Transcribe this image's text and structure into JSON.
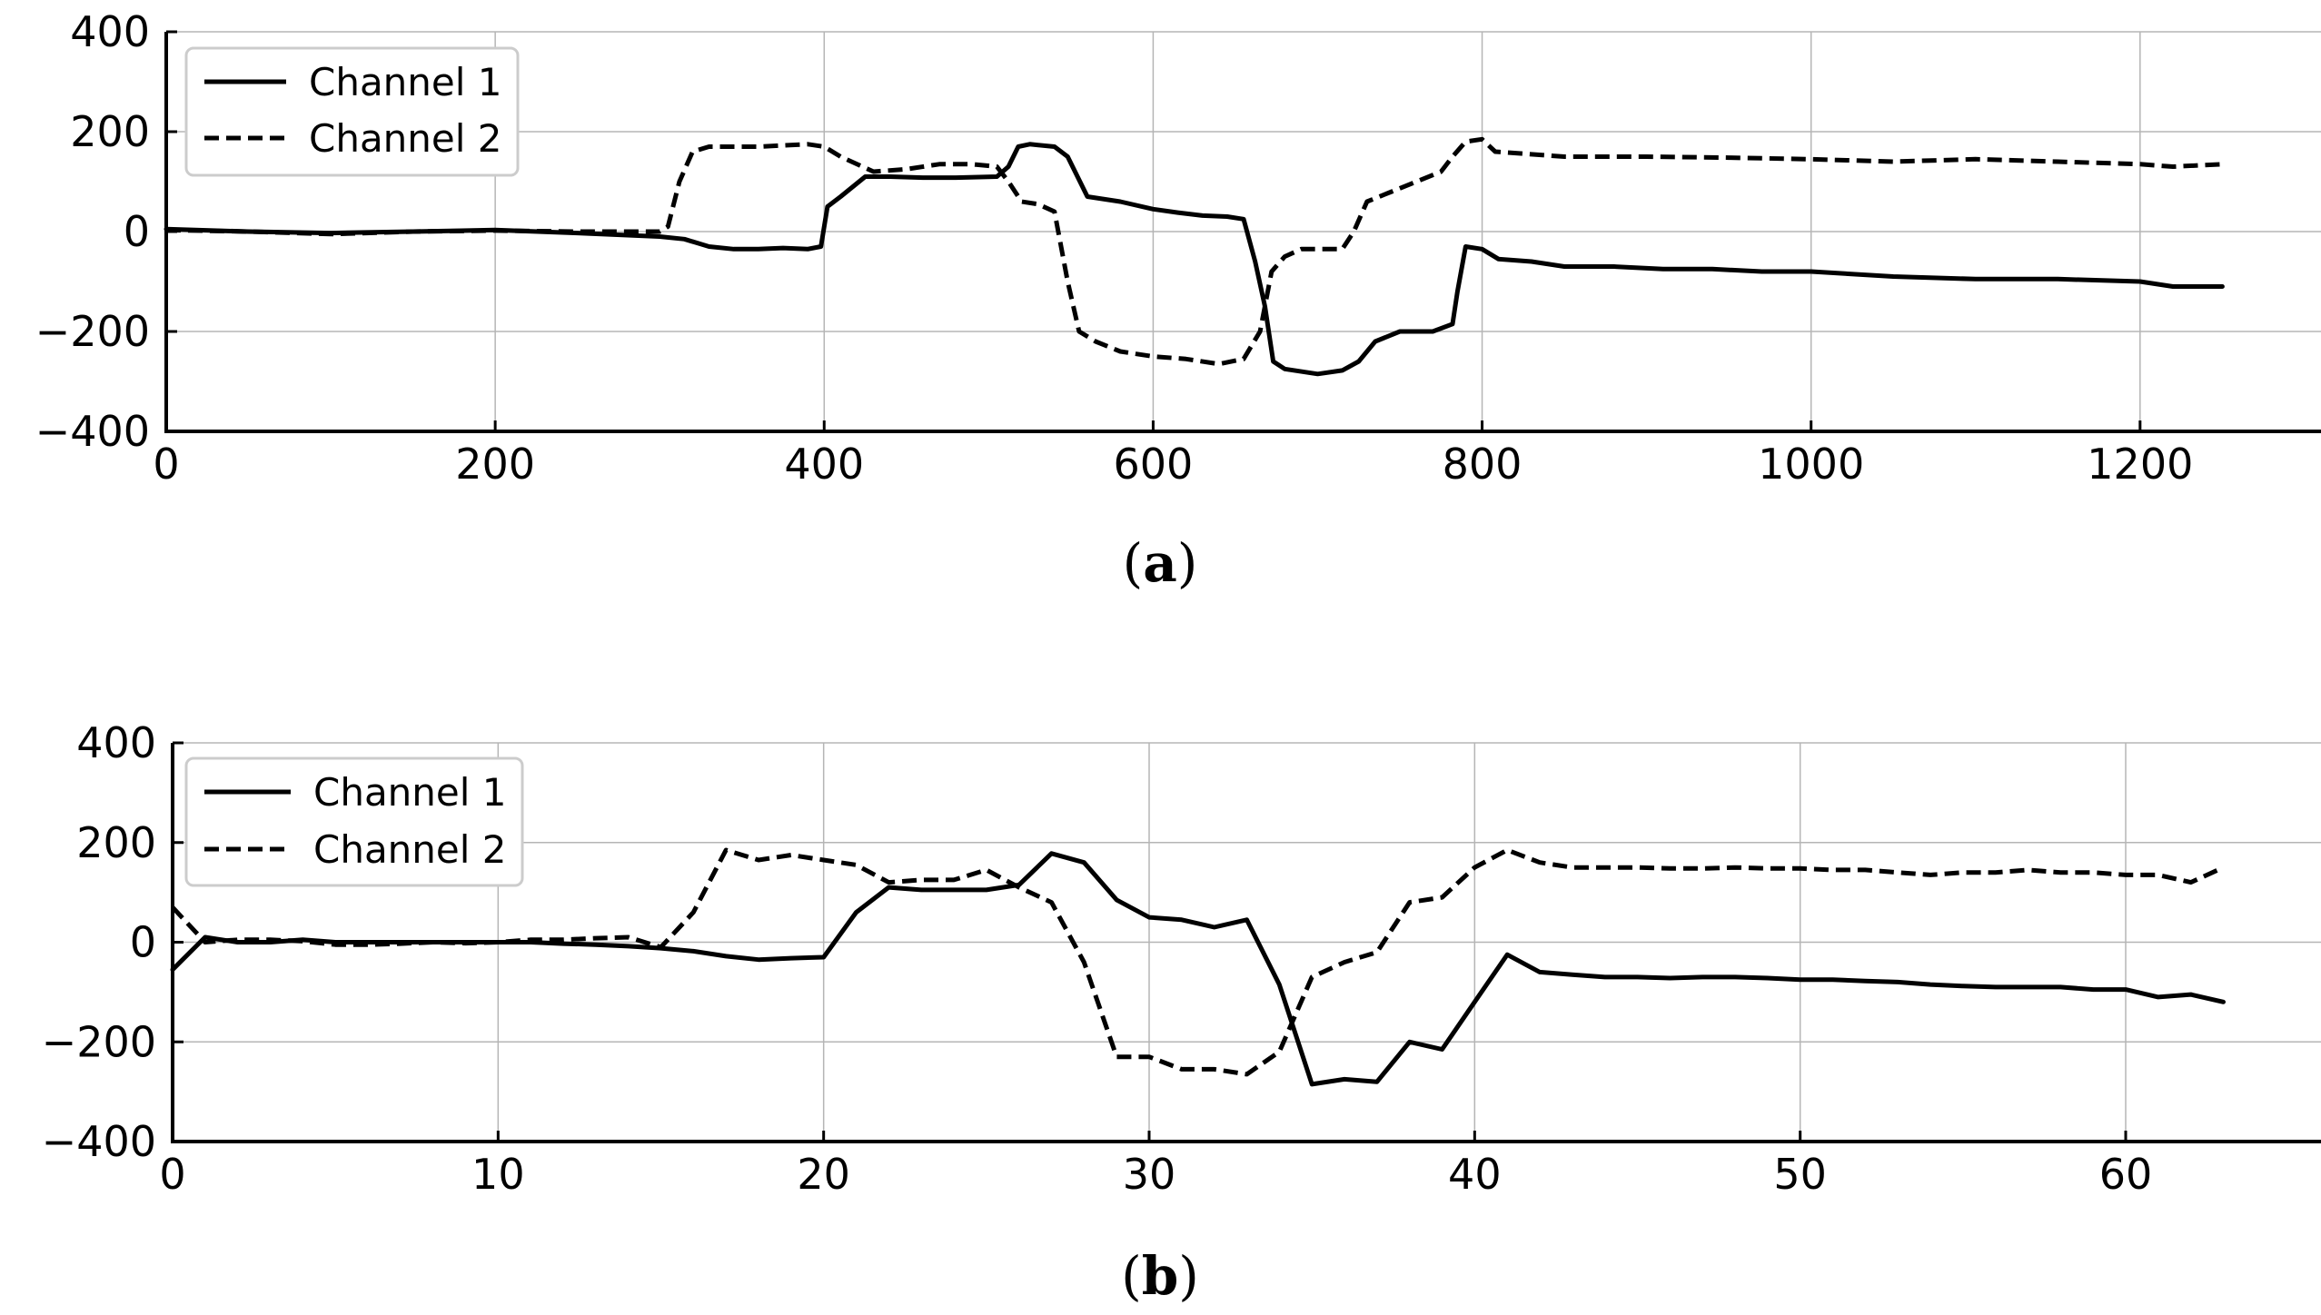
{
  "chart_data": [
    {
      "type": "line",
      "caption_letter": "a",
      "xlim": [
        0,
        1310
      ],
      "ylim": [
        -400,
        400
      ],
      "xticks": [
        0,
        200,
        400,
        600,
        800,
        1000,
        1200
      ],
      "yticks": [
        -400,
        -200,
        0,
        200,
        400
      ],
      "xtick_labels": [
        "0",
        "200",
        "400",
        "600",
        "800",
        "1000",
        "1200"
      ],
      "ytick_labels": [
        "−400",
        "−200",
        "0",
        "200",
        "400"
      ],
      "grid": true,
      "legend_position": "top-left",
      "series": [
        {
          "name": "Channel 1",
          "style": "solid",
          "color": "#000000",
          "x": [
            0,
            50,
            100,
            150,
            200,
            250,
            300,
            315,
            330,
            345,
            360,
            375,
            390,
            398,
            402,
            410,
            425,
            440,
            460,
            480,
            505,
            512,
            518,
            525,
            540,
            548,
            560,
            580,
            600,
            615,
            630,
            645,
            655,
            662,
            668,
            673,
            680,
            700,
            715,
            725,
            735,
            750,
            770,
            782,
            785,
            790,
            800,
            810,
            830,
            850,
            880,
            910,
            940,
            970,
            1000,
            1050,
            1100,
            1150,
            1200,
            1220,
            1250
          ],
          "y": [
            5,
            0,
            -3,
            0,
            3,
            -3,
            -10,
            -15,
            -30,
            -35,
            -35,
            -33,
            -35,
            -30,
            50,
            70,
            110,
            110,
            108,
            108,
            110,
            130,
            170,
            175,
            170,
            150,
            70,
            60,
            45,
            38,
            32,
            30,
            25,
            -60,
            -150,
            -260,
            -275,
            -285,
            -278,
            -260,
            -220,
            -200,
            -200,
            -185,
            -120,
            -30,
            -35,
            -55,
            -60,
            -70,
            -70,
            -75,
            -75,
            -80,
            -80,
            -90,
            -95,
            -95,
            -100,
            -110,
            -110
          ]
        },
        {
          "name": "Channel 2",
          "style": "dashed",
          "color": "#000000",
          "x": [
            0,
            50,
            100,
            150,
            200,
            250,
            300,
            305,
            312,
            320,
            330,
            360,
            390,
            400,
            410,
            430,
            450,
            470,
            490,
            505,
            512,
            520,
            530,
            540,
            548,
            555,
            565,
            580,
            600,
            620,
            640,
            655,
            665,
            672,
            680,
            690,
            715,
            722,
            730,
            745,
            760,
            775,
            782,
            790,
            800,
            808,
            850,
            900,
            950,
            1000,
            1050,
            1100,
            1150,
            1200,
            1220,
            1250
          ],
          "y": [
            3,
            0,
            -5,
            0,
            2,
            0,
            0,
            10,
            100,
            160,
            170,
            170,
            175,
            170,
            150,
            120,
            125,
            135,
            135,
            130,
            100,
            60,
            55,
            40,
            -100,
            -200,
            -220,
            -240,
            -250,
            -255,
            -265,
            -255,
            -200,
            -80,
            -50,
            -35,
            -35,
            0,
            60,
            80,
            100,
            120,
            150,
            180,
            185,
            160,
            150,
            150,
            148,
            145,
            140,
            145,
            140,
            135,
            130,
            135
          ]
        }
      ]
    },
    {
      "type": "line",
      "caption_letter": "b",
      "xlim": [
        0,
        66
      ],
      "ylim": [
        -400,
        400
      ],
      "xticks": [
        0,
        10,
        20,
        30,
        40,
        50,
        60
      ],
      "yticks": [
        -400,
        -200,
        0,
        200,
        400
      ],
      "xtick_labels": [
        "0",
        "10",
        "20",
        "30",
        "40",
        "50",
        "60"
      ],
      "ytick_labels": [
        "−400",
        "−200",
        "0",
        "200",
        "400"
      ],
      "grid": true,
      "legend_position": "top-left",
      "series": [
        {
          "name": "Channel 1",
          "style": "solid",
          "color": "#000000",
          "x": [
            0,
            1,
            2,
            3,
            4,
            5,
            6,
            7,
            8,
            9,
            10,
            11,
            12,
            13,
            14,
            15,
            16,
            17,
            18,
            19,
            20,
            21,
            22,
            23,
            24,
            25,
            26,
            27,
            28,
            29,
            30,
            31,
            32,
            33,
            34,
            35,
            36,
            37,
            38,
            39,
            40,
            41,
            42,
            43,
            44,
            45,
            46,
            47,
            48,
            49,
            50,
            51,
            52,
            53,
            54,
            55,
            56,
            57,
            58,
            59,
            60,
            61,
            62,
            63
          ],
          "y": [
            -55,
            10,
            0,
            0,
            5,
            0,
            0,
            0,
            0,
            0,
            0,
            0,
            -3,
            -5,
            -8,
            -12,
            -18,
            -28,
            -35,
            -32,
            -30,
            60,
            110,
            105,
            105,
            105,
            115,
            178,
            160,
            85,
            50,
            45,
            30,
            45,
            -85,
            -285,
            -275,
            -280,
            -200,
            -215,
            -120,
            -25,
            -60,
            -65,
            -70,
            -70,
            -72,
            -70,
            -70,
            -72,
            -75,
            -75,
            -78,
            -80,
            -85,
            -88,
            -90,
            -90,
            -90,
            -95,
            -95,
            -110,
            -105,
            -120
          ]
        },
        {
          "name": "Channel 2",
          "style": "dashed",
          "color": "#000000",
          "x": [
            0,
            1,
            2,
            3,
            4,
            5,
            6,
            7,
            8,
            9,
            10,
            11,
            12,
            13,
            14,
            15,
            16,
            17,
            18,
            19,
            20,
            21,
            22,
            23,
            24,
            25,
            26,
            27,
            28,
            29,
            30,
            31,
            32,
            33,
            34,
            35,
            36,
            37,
            38,
            39,
            40,
            41,
            42,
            43,
            44,
            45,
            46,
            47,
            48,
            49,
            50,
            51,
            52,
            53,
            54,
            55,
            56,
            57,
            58,
            59,
            60,
            61,
            62,
            63
          ],
          "y": [
            70,
            0,
            5,
            5,
            2,
            -5,
            -5,
            -3,
            0,
            -2,
            0,
            5,
            5,
            8,
            10,
            -10,
            60,
            185,
            165,
            175,
            165,
            155,
            120,
            125,
            125,
            145,
            110,
            80,
            -40,
            -230,
            -230,
            -255,
            -255,
            -265,
            -220,
            -70,
            -40,
            -20,
            80,
            90,
            150,
            185,
            160,
            150,
            150,
            150,
            148,
            148,
            150,
            148,
            148,
            145,
            145,
            140,
            135,
            140,
            140,
            145,
            140,
            140,
            135,
            135,
            120,
            150
          ]
        }
      ]
    }
  ]
}
